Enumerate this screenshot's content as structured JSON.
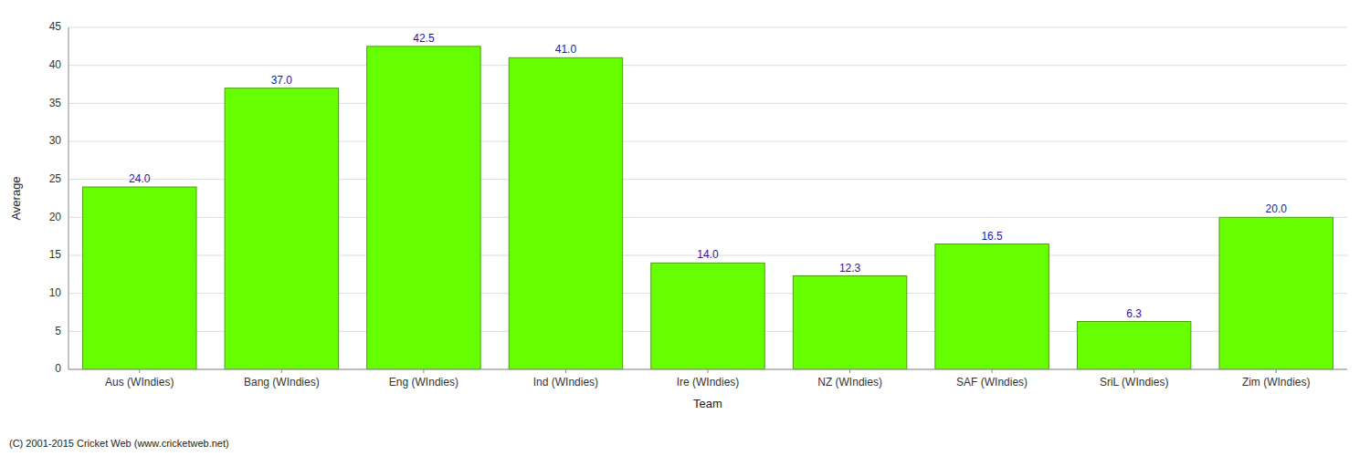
{
  "chart_data": {
    "type": "bar",
    "categories": [
      "Aus (WIndies)",
      "Bang (WIndies)",
      "Eng (WIndies)",
      "Ind (WIndies)",
      "Ire (WIndies)",
      "NZ (WIndies)",
      "SAF (WIndies)",
      "SriL (WIndies)",
      "Zim (WIndies)"
    ],
    "values": [
      24.0,
      37.0,
      42.5,
      41.0,
      14.0,
      12.3,
      16.5,
      6.3,
      20.0
    ],
    "value_labels": [
      "24.0",
      "37.0",
      "42.5",
      "41.0",
      "14.0",
      "12.3",
      "16.5",
      "6.3",
      "20.0"
    ],
    "data_labels": true,
    "color": "#66FF00",
    "x_label": "Team",
    "y_label": "Average",
    "ylim": [
      0,
      45
    ],
    "yticks": [
      0,
      5,
      10,
      15,
      20,
      25,
      30,
      35,
      40,
      45
    ],
    "grid": true,
    "annotations": [
      "(C) 2001-2015 Cricket Web (www.cricketweb.net)"
    ]
  }
}
